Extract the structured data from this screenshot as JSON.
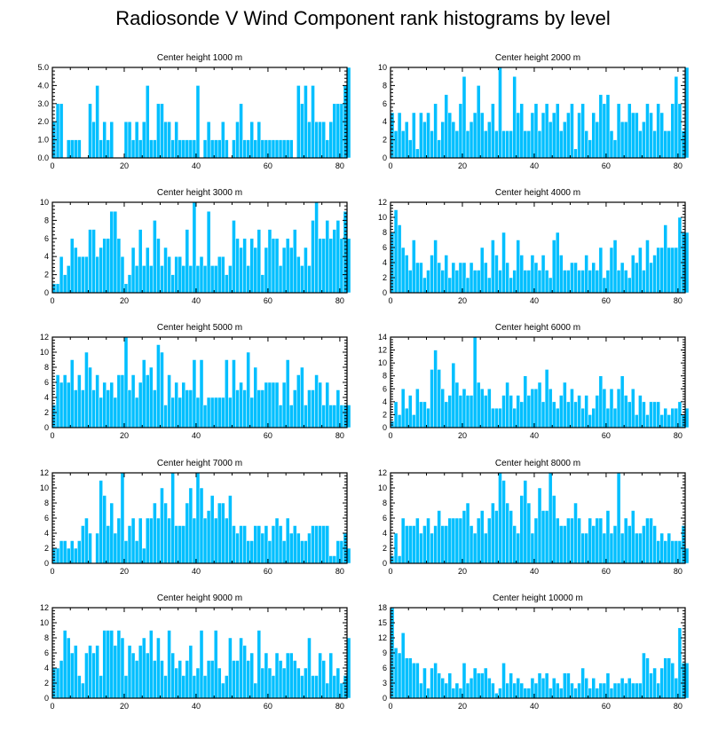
{
  "title": "Radiosonde V Wind Component rank histograms by level",
  "colors": {
    "bar": "#00BFFF",
    "bar_edge": "#ffffff",
    "axis": "#000000"
  },
  "chart_data": [
    {
      "type": "bar",
      "title": "Center height 1000 m",
      "x_start": 0,
      "xlim": [
        0,
        82
      ],
      "ylim": [
        0,
        5
      ],
      "xticks": [
        0,
        20,
        40,
        60,
        80
      ],
      "yticks": [
        0,
        1,
        2,
        3,
        4,
        5
      ],
      "ytick_labels": [
        "0.0",
        "1.0",
        "2.0",
        "3.0",
        "4.0",
        "5.0"
      ],
      "values": [
        2,
        3,
        3,
        0,
        1,
        1,
        1,
        1,
        0,
        0,
        3,
        2,
        4,
        1,
        2,
        1,
        2,
        0,
        0,
        0,
        2,
        2,
        1,
        2,
        1,
        2,
        4,
        1,
        1,
        3,
        3,
        2,
        2,
        1,
        2,
        1,
        1,
        1,
        1,
        1,
        4,
        0,
        1,
        2,
        1,
        1,
        1,
        2,
        1,
        0,
        1,
        2,
        3,
        1,
        1,
        2,
        1,
        2,
        1,
        1,
        1,
        1,
        1,
        1,
        1,
        1,
        1,
        0,
        4,
        3,
        4,
        2,
        4,
        2,
        2,
        2,
        1,
        2,
        3,
        3,
        3,
        4,
        5
      ]
    },
    {
      "type": "bar",
      "title": "Center height 2000 m",
      "x_start": 0,
      "xlim": [
        0,
        82
      ],
      "ylim": [
        0,
        10
      ],
      "xticks": [
        0,
        20,
        40,
        60,
        80
      ],
      "yticks": [
        0,
        2,
        4,
        6,
        8,
        10
      ],
      "ytick_labels": [
        "0",
        "2",
        "4",
        "6",
        "8",
        "10"
      ],
      "values": [
        5,
        3,
        5,
        3,
        4,
        2,
        5,
        1,
        5,
        4,
        5,
        3,
        6,
        2,
        4,
        7,
        5,
        4,
        3,
        6,
        9,
        3,
        4,
        5,
        8,
        5,
        3,
        4,
        6,
        3,
        10,
        3,
        3,
        3,
        9,
        5,
        6,
        3,
        3,
        5,
        6,
        3,
        5,
        6,
        4,
        5,
        6,
        3,
        4,
        5,
        6,
        1,
        5,
        6,
        3,
        2,
        5,
        4,
        7,
        6,
        7,
        3,
        2,
        6,
        4,
        4,
        6,
        5,
        5,
        3,
        4,
        6,
        5,
        3,
        6,
        5,
        3,
        3,
        6,
        9,
        6,
        3,
        10
      ]
    },
    {
      "type": "bar",
      "title": "Center height 3000 m",
      "x_start": 0,
      "xlim": [
        0,
        82
      ],
      "ylim": [
        0,
        10
      ],
      "xticks": [
        0,
        20,
        40,
        60,
        80
      ],
      "yticks": [
        0,
        2,
        4,
        6,
        8,
        10
      ],
      "ytick_labels": [
        "0",
        "2",
        "4",
        "6",
        "8",
        "10"
      ],
      "values": [
        1,
        1,
        4,
        2,
        3,
        6,
        5,
        4,
        4,
        4,
        7,
        7,
        4,
        5,
        6,
        6,
        9,
        9,
        6,
        4,
        1,
        2,
        5,
        3,
        7,
        3,
        5,
        3,
        8,
        6,
        3,
        5,
        4,
        2,
        4,
        4,
        3,
        7,
        3,
        10,
        3,
        4,
        3,
        9,
        3,
        3,
        4,
        4,
        2,
        3,
        8,
        6,
        5,
        6,
        3,
        6,
        5,
        7,
        2,
        5,
        7,
        6,
        6,
        3,
        5,
        6,
        5,
        7,
        4,
        3,
        5,
        3,
        8,
        10,
        6,
        6,
        8,
        6,
        7,
        8,
        6,
        9,
        6
      ]
    },
    {
      "type": "bar",
      "title": "Center height 4000 m",
      "x_start": 0,
      "xlim": [
        0,
        82
      ],
      "ylim": [
        0,
        12
      ],
      "xticks": [
        0,
        20,
        40,
        60,
        80
      ],
      "yticks": [
        0,
        2,
        4,
        6,
        8,
        10,
        12
      ],
      "ytick_labels": [
        "0",
        "2",
        "4",
        "6",
        "8",
        "10",
        "12"
      ],
      "values": [
        8,
        11,
        9,
        6,
        5,
        3,
        7,
        4,
        4,
        2,
        3,
        5,
        7,
        4,
        3,
        5,
        2,
        4,
        3,
        4,
        4,
        2,
        4,
        3,
        3,
        6,
        4,
        2,
        7,
        5,
        3,
        8,
        4,
        2,
        3,
        7,
        5,
        3,
        3,
        5,
        4,
        3,
        5,
        3,
        2,
        7,
        8,
        5,
        3,
        3,
        4,
        4,
        3,
        3,
        5,
        3,
        4,
        3,
        6,
        2,
        3,
        6,
        7,
        3,
        4,
        3,
        2,
        5,
        4,
        6,
        3,
        7,
        4,
        5,
        6,
        6,
        9,
        6,
        6,
        6,
        10,
        8,
        8
      ]
    },
    {
      "type": "bar",
      "title": "Center height 5000 m",
      "x_start": 0,
      "xlim": [
        0,
        82
      ],
      "ylim": [
        0,
        12
      ],
      "xticks": [
        0,
        20,
        40,
        60,
        80
      ],
      "yticks": [
        0,
        2,
        4,
        6,
        8,
        10,
        12
      ],
      "ytick_labels": [
        "0",
        "2",
        "4",
        "6",
        "8",
        "10",
        "12"
      ],
      "values": [
        3,
        7,
        6,
        7,
        6,
        9,
        5,
        7,
        5,
        10,
        8,
        5,
        7,
        4,
        6,
        5,
        6,
        4,
        7,
        7,
        12,
        5,
        7,
        4,
        6,
        9,
        7,
        8,
        5,
        11,
        10,
        3,
        7,
        4,
        6,
        4,
        6,
        5,
        5,
        9,
        4,
        9,
        3,
        4,
        4,
        4,
        4,
        4,
        9,
        4,
        9,
        5,
        6,
        5,
        10,
        4,
        8,
        5,
        5,
        6,
        6,
        6,
        6,
        3,
        6,
        9,
        3,
        5,
        7,
        8,
        3,
        5,
        5,
        7,
        6,
        3,
        6,
        3,
        3,
        5,
        3,
        3,
        3
      ]
    },
    {
      "type": "bar",
      "title": "Center height 6000 m",
      "x_start": 0,
      "xlim": [
        0,
        82
      ],
      "ylim": [
        0,
        14
      ],
      "xticks": [
        0,
        20,
        40,
        60,
        80
      ],
      "yticks": [
        0,
        2,
        4,
        6,
        8,
        10,
        12,
        14
      ],
      "ytick_labels": [
        "0",
        "2",
        "4",
        "6",
        "8",
        "10",
        "12",
        "14"
      ],
      "values": [
        1,
        4,
        2,
        6,
        3,
        5,
        2,
        6,
        4,
        4,
        3,
        9,
        12,
        9,
        6,
        4,
        5,
        10,
        7,
        5,
        6,
        5,
        5,
        14,
        7,
        6,
        5,
        6,
        3,
        3,
        3,
        5,
        7,
        5,
        3,
        5,
        4,
        8,
        5,
        6,
        6,
        7,
        4,
        9,
        6,
        4,
        3,
        5,
        7,
        4,
        6,
        4,
        5,
        3,
        5,
        2,
        3,
        5,
        8,
        6,
        3,
        6,
        3,
        6,
        8,
        5,
        4,
        6,
        2,
        5,
        4,
        2,
        4,
        4,
        4,
        2,
        3,
        2,
        3,
        3,
        4,
        2,
        3
      ]
    },
    {
      "type": "bar",
      "title": "Center height 7000 m",
      "x_start": 0,
      "xlim": [
        0,
        82
      ],
      "ylim": [
        0,
        12
      ],
      "xticks": [
        0,
        20,
        40,
        60,
        80
      ],
      "yticks": [
        0,
        2,
        4,
        6,
        8,
        10,
        12
      ],
      "ytick_labels": [
        "0",
        "2",
        "4",
        "6",
        "8",
        "10",
        "12"
      ],
      "values": [
        2,
        2,
        3,
        3,
        2,
        3,
        2,
        3,
        5,
        6,
        4,
        0,
        4,
        11,
        9,
        5,
        8,
        4,
        6,
        12,
        3,
        5,
        6,
        3,
        6,
        2,
        6,
        6,
        8,
        6,
        10,
        8,
        6,
        12,
        5,
        5,
        5,
        8,
        10,
        6,
        12,
        10,
        6,
        7,
        9,
        6,
        8,
        8,
        6,
        9,
        5,
        4,
        5,
        5,
        3,
        3,
        5,
        5,
        4,
        5,
        3,
        5,
        6,
        5,
        3,
        6,
        4,
        5,
        4,
        3,
        3,
        4,
        5,
        5,
        5,
        5,
        5,
        1,
        1,
        3,
        3,
        4,
        2
      ]
    },
    {
      "type": "bar",
      "title": "Center height 8000 m",
      "x_start": 0,
      "xlim": [
        0,
        82
      ],
      "ylim": [
        0,
        12
      ],
      "xticks": [
        0,
        20,
        40,
        60,
        80
      ],
      "yticks": [
        0,
        2,
        4,
        6,
        8,
        10,
        12
      ],
      "ytick_labels": [
        "0",
        "2",
        "4",
        "6",
        "8",
        "10",
        "12"
      ],
      "values": [
        1,
        4,
        1,
        6,
        5,
        5,
        5,
        6,
        4,
        5,
        6,
        4,
        5,
        7,
        5,
        5,
        6,
        6,
        6,
        6,
        7,
        8,
        5,
        4,
        6,
        7,
        4,
        6,
        8,
        7,
        12,
        11,
        8,
        7,
        5,
        4,
        9,
        11,
        8,
        4,
        6,
        10,
        7,
        7,
        12,
        9,
        6,
        5,
        5,
        6,
        6,
        8,
        6,
        4,
        4,
        6,
        5,
        6,
        6,
        4,
        7,
        4,
        5,
        12,
        4,
        6,
        5,
        7,
        4,
        4,
        5,
        6,
        6,
        5,
        3,
        4,
        3,
        4,
        3,
        3,
        3,
        5,
        2
      ]
    },
    {
      "type": "bar",
      "title": "Center height 9000 m",
      "x_start": 0,
      "xlim": [
        0,
        82
      ],
      "ylim": [
        0,
        12
      ],
      "xticks": [
        0,
        20,
        40,
        60,
        80
      ],
      "yticks": [
        0,
        2,
        4,
        6,
        8,
        10,
        12
      ],
      "ytick_labels": [
        "0",
        "2",
        "4",
        "6",
        "8",
        "10",
        "12"
      ],
      "values": [
        4,
        4,
        5,
        9,
        8,
        6,
        7,
        3,
        2,
        6,
        7,
        6,
        7,
        3,
        9,
        9,
        9,
        7,
        9,
        8,
        3,
        7,
        6,
        5,
        7,
        8,
        6,
        9,
        5,
        8,
        5,
        3,
        9,
        6,
        4,
        5,
        3,
        5,
        7,
        3,
        4,
        9,
        3,
        5,
        5,
        9,
        4,
        2,
        3,
        8,
        5,
        5,
        8,
        7,
        5,
        6,
        2,
        9,
        4,
        6,
        4,
        3,
        6,
        5,
        4,
        6,
        6,
        5,
        4,
        3,
        4,
        8,
        3,
        3,
        6,
        5,
        2,
        6,
        3,
        4,
        2,
        3,
        8
      ]
    },
    {
      "type": "bar",
      "title": "Center height 10000 m",
      "x_start": 0,
      "xlim": [
        0,
        82
      ],
      "ylim": [
        0,
        18
      ],
      "xticks": [
        0,
        20,
        40,
        60,
        80
      ],
      "yticks": [
        0,
        3,
        6,
        9,
        12,
        15,
        18
      ],
      "ytick_labels": [
        "0",
        "3",
        "6",
        "9",
        "12",
        "15",
        "18"
      ],
      "values": [
        18,
        10,
        9,
        13,
        8,
        8,
        7,
        7,
        3,
        6,
        2,
        6,
        7,
        5,
        4,
        3,
        5,
        2,
        3,
        2,
        7,
        3,
        4,
        6,
        5,
        5,
        6,
        4,
        3,
        1,
        2,
        7,
        3,
        5,
        3,
        4,
        3,
        2,
        2,
        4,
        3,
        5,
        4,
        5,
        2,
        4,
        3,
        2,
        5,
        5,
        3,
        2,
        3,
        6,
        4,
        2,
        4,
        2,
        3,
        3,
        5,
        2,
        3,
        3,
        4,
        3,
        4,
        3,
        3,
        3,
        9,
        8,
        5,
        6,
        3,
        6,
        8,
        8,
        7,
        4,
        14,
        7,
        7
      ]
    }
  ]
}
